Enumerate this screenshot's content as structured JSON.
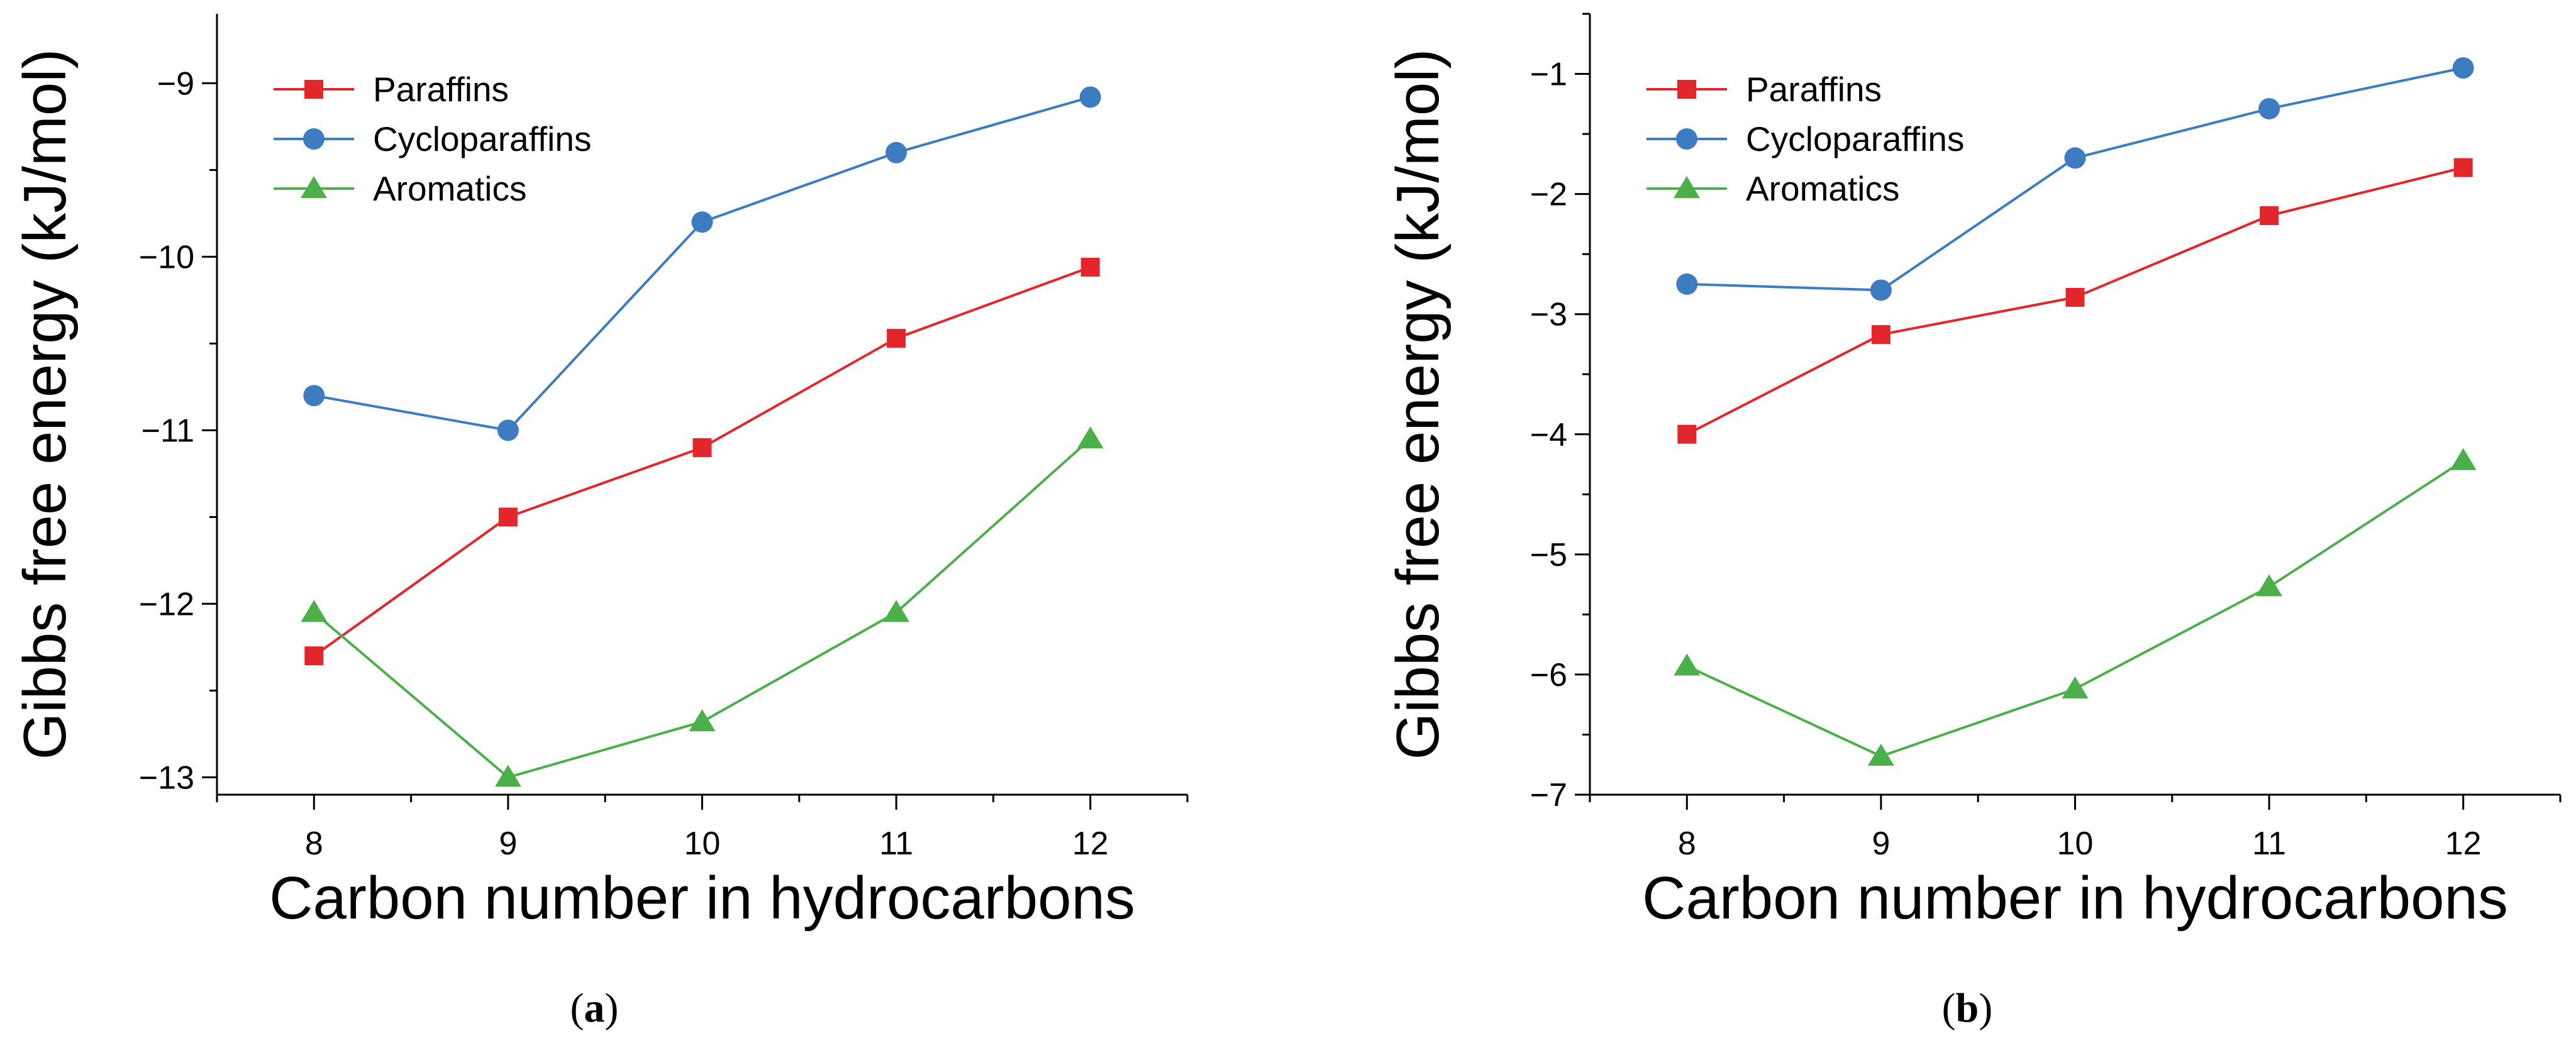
{
  "chart_data": [
    {
      "id": "a",
      "type": "line",
      "caption_open": "(",
      "caption_letter": "a",
      "caption_close": ")",
      "x": [
        8,
        9,
        10,
        11,
        12
      ],
      "xlim": [
        7.5,
        12.5
      ],
      "xticks": [
        "8",
        "9",
        "10",
        "11",
        "12"
      ],
      "ylim": [
        -13.1,
        -8.6
      ],
      "yticks": [
        {
          "value": -9,
          "label": "−9"
        },
        {
          "value": -10,
          "label": "−10"
        },
        {
          "value": -11,
          "label": "−11"
        },
        {
          "value": -12,
          "label": "−12"
        },
        {
          "value": -13,
          "label": "−13"
        }
      ],
      "xlabel": "Carbon number in hydrocarbons",
      "ylabel": "Gibbs free energy (kJ/mol)",
      "legend_position": "top-left",
      "series": [
        {
          "name": "Paraffins",
          "marker": "square",
          "color": "#e3262b",
          "values": [
            -12.3,
            -11.5,
            -11.1,
            -10.47,
            -10.06
          ]
        },
        {
          "name": "Cycloparaffins",
          "marker": "circle",
          "color": "#3d7cc0",
          "values": [
            -10.8,
            -11.0,
            -9.8,
            -9.4,
            -9.08
          ]
        },
        {
          "name": "Aromatics",
          "marker": "triangle",
          "color": "#4cb04a",
          "values": [
            -12.05,
            -13.0,
            -12.68,
            -12.05,
            -11.05
          ]
        }
      ]
    },
    {
      "id": "b",
      "type": "line",
      "caption_open": "(",
      "caption_letter": "b",
      "caption_close": ")",
      "x": [
        8,
        9,
        10,
        11,
        12
      ],
      "xlim": [
        7.5,
        12.5
      ],
      "xticks": [
        "8",
        "9",
        "10",
        "11",
        "12"
      ],
      "ylim": [
        -7.0,
        -0.5
      ],
      "yticks": [
        {
          "value": -1,
          "label": "−1"
        },
        {
          "value": -2,
          "label": "−2"
        },
        {
          "value": -3,
          "label": "−3"
        },
        {
          "value": -4,
          "label": "−4"
        },
        {
          "value": -5,
          "label": "−5"
        },
        {
          "value": -6,
          "label": "−6"
        },
        {
          "value": -7,
          "label": "−7"
        }
      ],
      "xlabel": "Carbon number in hydrocarbons",
      "ylabel": "Gibbs free energy (kJ/mol)",
      "legend_position": "top-left",
      "series": [
        {
          "name": "Paraffins",
          "marker": "square",
          "color": "#e3262b",
          "values": [
            -4.0,
            -3.17,
            -2.86,
            -2.18,
            -1.78
          ]
        },
        {
          "name": "Cycloparaffins",
          "marker": "circle",
          "color": "#3d7cc0",
          "values": [
            -2.75,
            -2.8,
            -1.7,
            -1.29,
            -0.95
          ]
        },
        {
          "name": "Aromatics",
          "marker": "triangle",
          "color": "#4cb04a",
          "values": [
            -5.93,
            -6.68,
            -6.12,
            -5.27,
            -4.22
          ]
        }
      ]
    }
  ]
}
